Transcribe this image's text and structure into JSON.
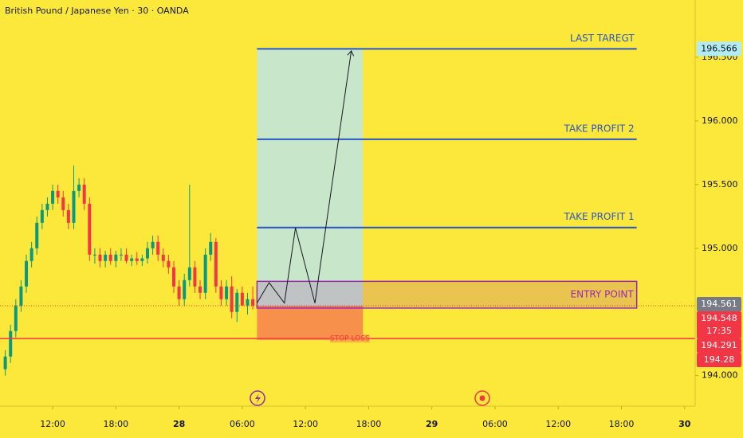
{
  "chart_data": {
    "type": "candlestick",
    "title": "British Pound / Japanese Yen · 30 · OANDA",
    "up_color": "#089981",
    "down_color": "#f23645",
    "xlim": [
      -1,
      131
    ],
    "ylim": [
      193.76,
      196.95
    ],
    "xticks": [
      {
        "value": 9,
        "label": "12:00"
      },
      {
        "value": 21,
        "label": "18:00"
      },
      {
        "value": 33,
        "label": "28"
      },
      {
        "value": 45,
        "label": "06:00"
      },
      {
        "value": 57,
        "label": "12:00"
      },
      {
        "value": 69,
        "label": "18:00"
      },
      {
        "value": 81,
        "label": "29"
      },
      {
        "value": 93,
        "label": "06:00"
      },
      {
        "value": 105,
        "label": "12:00"
      },
      {
        "value": 117,
        "label": "18:00"
      },
      {
        "value": 129,
        "label": "30"
      }
    ],
    "yticks": [
      {
        "value": 194,
        "label": "194.000"
      },
      {
        "value": 195,
        "label": "195.000"
      },
      {
        "value": 195.5,
        "label": "195.500"
      },
      {
        "value": 196,
        "label": "196.000"
      },
      {
        "value": 196.5,
        "label": "196.500"
      }
    ],
    "candles": {
      "open": [
        194.05,
        194.15,
        194.35,
        194.55,
        194.7,
        194.9,
        195.0,
        195.2,
        195.3,
        195.35,
        195.45,
        195.4,
        195.3,
        195.2,
        195.45,
        195.5,
        195.35,
        194.95,
        194.95,
        194.9,
        194.95,
        194.9,
        194.95,
        194.95,
        194.9,
        194.92,
        194.9,
        194.92,
        195.0,
        195.05,
        194.95,
        194.9,
        194.85,
        194.7,
        194.6,
        194.75,
        194.85,
        194.7,
        194.65,
        194.95,
        195.05,
        194.7,
        194.6,
        194.7,
        194.5,
        194.65,
        194.55,
        194.6
      ],
      "high": [
        194.2,
        194.4,
        194.6,
        194.75,
        194.95,
        195.05,
        195.25,
        195.35,
        195.4,
        195.5,
        195.5,
        195.45,
        195.35,
        195.65,
        195.55,
        195.55,
        195.4,
        195.0,
        195.0,
        194.98,
        195.0,
        194.98,
        195.0,
        195.0,
        194.95,
        194.97,
        194.95,
        195.05,
        195.1,
        195.1,
        195.0,
        194.95,
        194.9,
        194.75,
        194.8,
        195.5,
        194.9,
        194.75,
        195.0,
        195.12,
        195.08,
        194.75,
        194.75,
        194.78,
        194.68,
        194.7,
        194.65,
        194.7
      ],
      "low": [
        194.0,
        194.1,
        194.3,
        194.5,
        194.65,
        194.85,
        194.95,
        195.15,
        195.25,
        195.3,
        195.35,
        195.25,
        195.15,
        195.15,
        195.4,
        195.3,
        194.9,
        194.88,
        194.85,
        194.85,
        194.87,
        194.85,
        194.9,
        194.88,
        194.86,
        194.87,
        194.86,
        194.88,
        194.95,
        194.9,
        194.85,
        194.8,
        194.65,
        194.55,
        194.55,
        194.7,
        194.65,
        194.6,
        194.6,
        194.9,
        194.65,
        194.55,
        194.55,
        194.45,
        194.42,
        194.55,
        194.48,
        194.52
      ],
      "close": [
        194.15,
        194.35,
        194.55,
        194.7,
        194.9,
        195.0,
        195.2,
        195.3,
        195.35,
        195.45,
        195.4,
        195.3,
        195.2,
        195.45,
        195.5,
        195.35,
        194.95,
        194.95,
        194.9,
        194.95,
        194.9,
        194.95,
        194.95,
        194.9,
        194.92,
        194.9,
        194.92,
        195.0,
        195.05,
        194.95,
        194.9,
        194.85,
        194.7,
        194.6,
        194.75,
        194.85,
        194.7,
        194.65,
        194.95,
        195.05,
        194.7,
        194.6,
        194.7,
        194.5,
        194.65,
        194.55,
        194.6,
        194.55
      ]
    },
    "zones": [
      {
        "x": [
          47.8,
          67.9
        ],
        "y": [
          194.548,
          196.566
        ],
        "color": "#c8e6c9"
      },
      {
        "x": [
          47.8,
          67.9
        ],
        "y": [
          194.28,
          194.548
        ],
        "color": "#f7904a"
      }
    ],
    "levels": [
      {
        "name": "LAST TAREGT",
        "value": 196.566,
        "x": [
          47.8,
          119.9
        ],
        "color": "#2a56c6"
      },
      {
        "name": "TAKE PROFIT 2",
        "value": 195.856,
        "x": [
          47.8,
          119.9
        ],
        "color": "#2a56c6"
      },
      {
        "name": "TAKE PROFIT 1",
        "value": 195.163,
        "x": [
          47.8,
          119.9
        ],
        "color": "#2a56c6"
      }
    ],
    "entry_box": {
      "name": "ENTRY POINT",
      "x": [
        47.8,
        119.9
      ],
      "y": [
        194.53,
        194.74
      ],
      "color": "#9c27b0"
    },
    "stop_loss": {
      "name": "STOP LOSS",
      "value": 194.291,
      "color": "#f23645"
    },
    "arrow_path": {
      "x": [
        47.8,
        50.1,
        53,
        55.1,
        58.8,
        65.7
      ],
      "y": [
        194.57,
        194.73,
        194.57,
        195.16,
        194.57,
        196.55
      ]
    },
    "price_labels": [
      {
        "value": 196.566,
        "color": "#b2ebf2",
        "text_color": "#131722"
      },
      {
        "value": 194.561,
        "color": "#787b86",
        "text_color": "#ffffff"
      },
      {
        "value": 194.548,
        "color": "#f23645",
        "text_color": "#ffffff",
        "countdown": "17:35"
      },
      {
        "value": 194.291,
        "color": "#f23645",
        "text_color": "#ffffff"
      },
      {
        "value": 194.28,
        "color": "#f23645",
        "text_color": "#ffffff"
      }
    ]
  }
}
